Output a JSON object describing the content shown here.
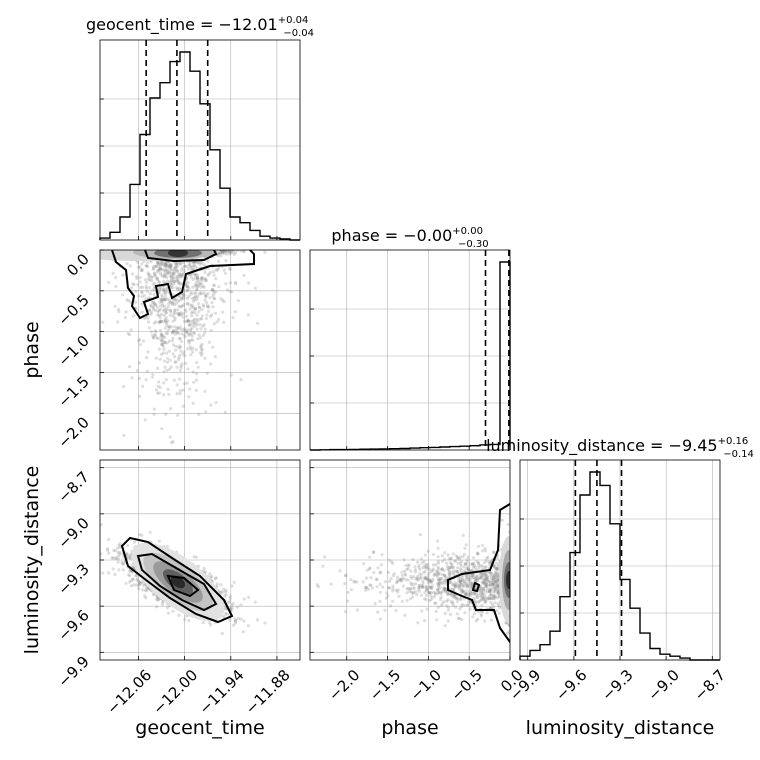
{
  "chart_data": {
    "type": "corner",
    "parameters": [
      "geocent_time",
      "phase",
      "luminosity_distance"
    ],
    "titles": [
      {
        "param": "geocent_time",
        "median": "−12.01",
        "plus": "+0.04",
        "minus": "−0.04"
      },
      {
        "param": "phase",
        "median": "−0.00",
        "plus": "+0.00",
        "minus": "−0.30"
      },
      {
        "param": "luminosity_distance",
        "median": "−9.45",
        "plus": "+0.16",
        "minus": "−0.14"
      }
    ],
    "axis_labels": {
      "x": [
        "geocent_time",
        "phase",
        "luminosity_distance"
      ],
      "y": [
        "phase",
        "luminosity_distance"
      ]
    },
    "ranges": {
      "geocent_time": [
        -12.11,
        -11.85
      ],
      "phase": [
        -2.45,
        0.0
      ],
      "luminosity_distance": [
        -9.95,
        -8.65
      ]
    },
    "ticks": {
      "geocent_time": {
        "values": [
          -12.06,
          -12.0,
          -11.94,
          -11.88
        ],
        "labels": [
          "−12.06",
          "−12.00",
          "−11.94",
          "−11.88"
        ]
      },
      "phase": {
        "values": [
          -2.0,
          -1.5,
          -1.0,
          -0.5,
          0.0
        ],
        "labels": [
          "−2.0",
          "−1.5",
          "−1.0",
          "−0.5",
          "0.0"
        ]
      },
      "luminosity_distance": {
        "values": [
          -9.9,
          -9.6,
          -9.3,
          -9.0,
          -8.7
        ],
        "labels": [
          "−9.9",
          "−9.6",
          "−9.3",
          "−9.0",
          "−8.7"
        ]
      }
    },
    "quantiles": {
      "geocent_time": [
        -12.05,
        -12.01,
        -11.97
      ],
      "phase": [
        -0.3,
        -0.01,
        0.0
      ],
      "luminosity_distance": [
        -9.59,
        -9.45,
        -9.29
      ]
    },
    "histograms": {
      "geocent_time": {
        "edges": [
          -12.11,
          -12.097,
          -12.084,
          -12.071,
          -12.058,
          -12.045,
          -12.032,
          -12.019,
          -12.006,
          -11.993,
          -11.98,
          -11.967,
          -11.954,
          -11.941,
          -11.928,
          -11.915,
          -11.902,
          -11.889,
          -11.876,
          -11.863,
          -11.85
        ],
        "counts": [
          0.01,
          0.04,
          0.12,
          0.29,
          0.55,
          0.74,
          0.82,
          0.93,
          0.98,
          0.88,
          0.71,
          0.47,
          0.27,
          0.12,
          0.09,
          0.05,
          0.02,
          0.01,
          0.005,
          0.0
        ]
      },
      "phase": {
        "edges": [
          -2.45,
          -2.3275,
          -2.205,
          -2.0825,
          -1.96,
          -1.8375,
          -1.715,
          -1.5925,
          -1.47,
          -1.3475,
          -1.225,
          -1.1025,
          -0.98,
          -0.8575,
          -0.735,
          -0.6125,
          -0.49,
          -0.3675,
          -0.245,
          -0.1225,
          0.0
        ],
        "counts": [
          0.0,
          0.001,
          0.002,
          0.002,
          0.003,
          0.004,
          0.005,
          0.006,
          0.007,
          0.008,
          0.01,
          0.012,
          0.014,
          0.016,
          0.018,
          0.02,
          0.023,
          0.027,
          0.03,
          1.0
        ]
      },
      "luminosity_distance": {
        "edges": [
          -9.95,
          -9.885,
          -9.82,
          -9.755,
          -9.69,
          -9.625,
          -9.56,
          -9.495,
          -9.43,
          -9.365,
          -9.3,
          -9.235,
          -9.17,
          -9.105,
          -9.04,
          -8.975,
          -8.91,
          -8.845,
          -8.78,
          -8.715,
          -8.65
        ],
        "counts": [
          0.02,
          0.05,
          0.08,
          0.15,
          0.33,
          0.56,
          0.86,
          0.98,
          0.91,
          0.71,
          0.42,
          0.27,
          0.14,
          0.06,
          0.03,
          0.02,
          0.01,
          0.0,
          0.0,
          0.0
        ]
      }
    }
  }
}
